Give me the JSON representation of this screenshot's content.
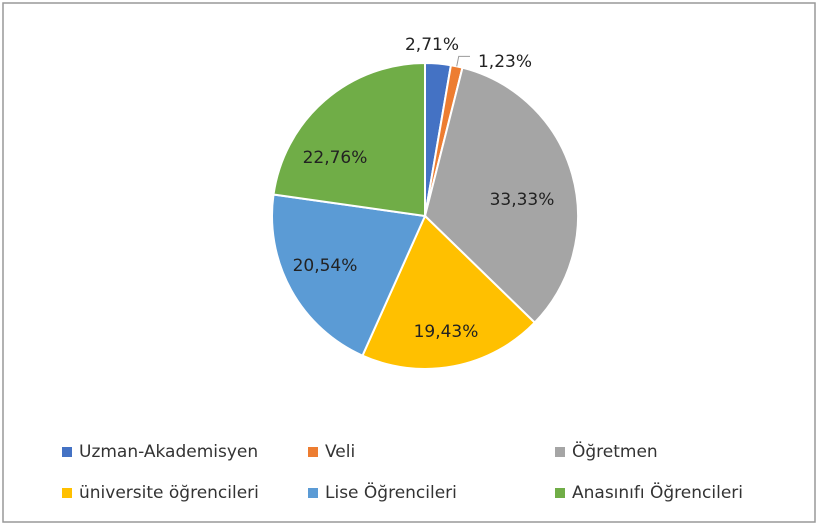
{
  "chart_data": {
    "type": "pie",
    "categories": [
      "Uzman-Akademisyen",
      "Veli",
      "Öğretmen",
      "üniversite öğrencileri",
      "Lise Öğrencileri",
      "Anasınıfı Öğrencileri"
    ],
    "values": [
      2.71,
      1.23,
      33.33,
      19.43,
      20.54,
      22.76
    ],
    "value_labels": [
      "2,71%",
      "1,23%",
      "33,33%",
      "19,43%",
      "20,54%",
      "22,76%"
    ],
    "colors": [
      "#4472c4",
      "#ed7d31",
      "#a5a5a5",
      "#ffc000",
      "#5b9bd5",
      "#70ad47"
    ],
    "legend": "bottom"
  }
}
